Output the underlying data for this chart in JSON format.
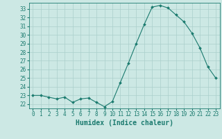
{
  "x": [
    0,
    1,
    2,
    3,
    4,
    5,
    6,
    7,
    8,
    9,
    10,
    11,
    12,
    13,
    14,
    15,
    16,
    17,
    18,
    19,
    20,
    21,
    22,
    23
  ],
  "y": [
    23.0,
    23.0,
    22.8,
    22.6,
    22.8,
    22.2,
    22.6,
    22.7,
    22.2,
    21.7,
    22.3,
    24.5,
    26.7,
    29.0,
    31.2,
    33.2,
    33.4,
    33.1,
    32.3,
    31.5,
    30.2,
    28.5,
    26.3,
    25.0
  ],
  "line_color": "#1a7a6e",
  "marker": "D",
  "marker_size": 2,
  "bg_color": "#cce8e4",
  "grid_color": "#aacfcb",
  "xlabel": "Humidex (Indice chaleur)",
  "xlim": [
    -0.5,
    23.5
  ],
  "ylim": [
    21.5,
    33.7
  ],
  "yticks": [
    22,
    23,
    24,
    25,
    26,
    27,
    28,
    29,
    30,
    31,
    32,
    33
  ],
  "xticks": [
    0,
    1,
    2,
    3,
    4,
    5,
    6,
    7,
    8,
    9,
    10,
    11,
    12,
    13,
    14,
    15,
    16,
    17,
    18,
    19,
    20,
    21,
    22,
    23
  ],
  "tick_label_fontsize": 5.5,
  "xlabel_fontsize": 7,
  "axis_color": "#1a7a6e",
  "linewidth": 0.8
}
